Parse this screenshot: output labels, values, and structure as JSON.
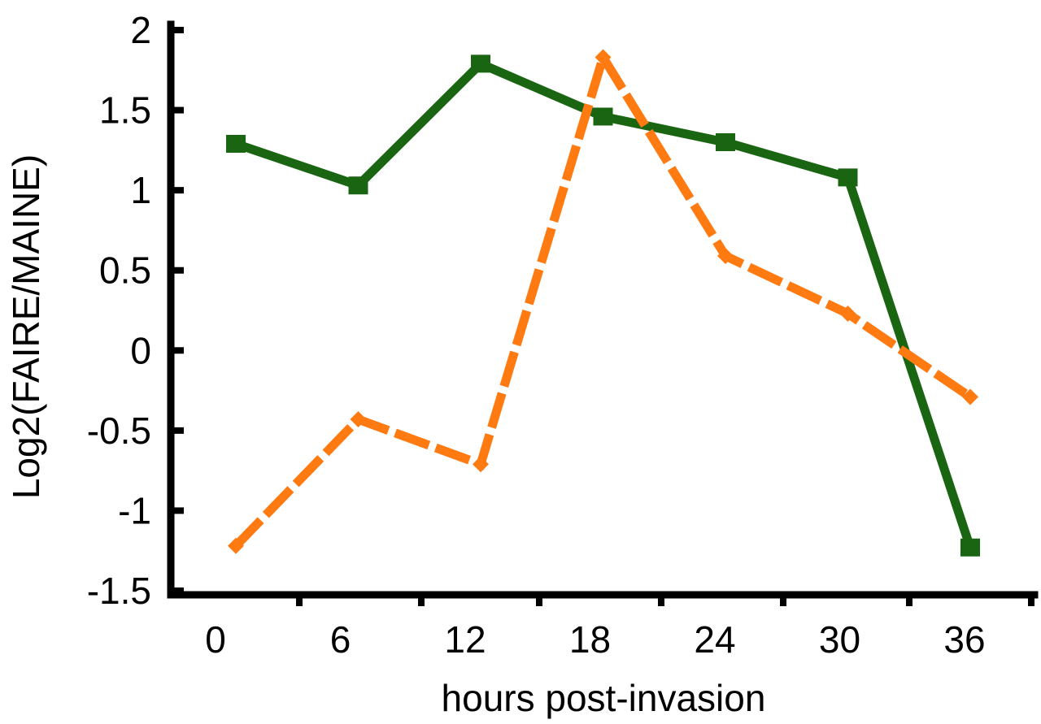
{
  "chart_data": {
    "type": "line",
    "title": "",
    "xlabel": "hours post-invasion",
    "ylabel": "Log2(FAIRE/MAINE)",
    "x_ticks": [
      "0",
      "6",
      "12",
      "18",
      "24",
      "30",
      "36"
    ],
    "y_ticks": [
      "2",
      "1.5",
      "1",
      "0.5",
      "0",
      "-0.5",
      "-1",
      "-1.5"
    ],
    "ylim": [
      -1.5,
      2
    ],
    "grid": false,
    "legend": "none",
    "series": [
      {
        "color": "#1a6512",
        "line_style": "solid",
        "marker": "square",
        "values": [
          1.29,
          1.03,
          1.79,
          1.46,
          1.3,
          1.08,
          -1.23
        ]
      },
      {
        "color": "#ff7a10",
        "line_style": "dashed",
        "marker": "diamond",
        "values": [
          -1.22,
          -0.43,
          -0.71,
          1.83,
          0.59,
          0.23,
          -0.29
        ]
      }
    ]
  }
}
